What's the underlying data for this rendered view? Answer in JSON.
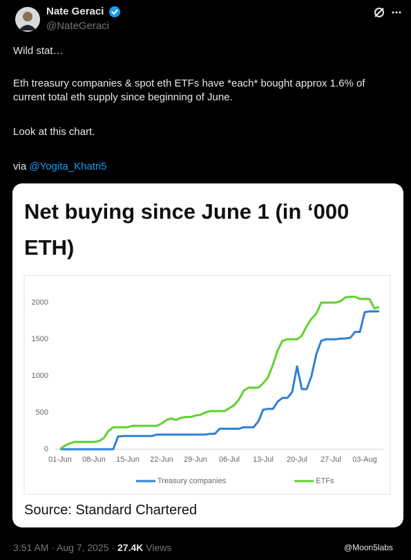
{
  "author": {
    "name": "Nate Geraci",
    "handle": "@NateGeraci"
  },
  "tweet": {
    "paragraphs": [
      "Wild stat…",
      "Eth treasury companies & spot eth ETFs have *each* bought approx 1.6% of current total eth supply since beginning of June.",
      "Look at this chart."
    ],
    "via": "via",
    "link": "@Yogita_Khatri5"
  },
  "chart_data": {
    "type": "line",
    "title": "Net buying since June 1 (in ‘000 ETH)",
    "source": "Source: Standard Chartered",
    "categories": [
      "01-Jun",
      null,
      null,
      null,
      null,
      null,
      null,
      "08-Jun",
      null,
      null,
      null,
      null,
      null,
      null,
      "15-Jun",
      null,
      null,
      null,
      null,
      null,
      null,
      "22-Jun",
      null,
      null,
      null,
      null,
      null,
      null,
      "29-Jun",
      null,
      null,
      null,
      null,
      null,
      null,
      "06-Jul",
      null,
      null,
      null,
      null,
      null,
      null,
      "13-Jul",
      null,
      null,
      null,
      null,
      null,
      null,
      "20-Jul",
      null,
      null,
      null,
      null,
      null,
      null,
      "27-Jul",
      null,
      null,
      null,
      null,
      null,
      null,
      "03-Aug",
      null,
      null,
      null
    ],
    "series": [
      {
        "name": "Treasury companies",
        "color": "#2e7fd6",
        "values": [
          0,
          0,
          0,
          0,
          0,
          0,
          0,
          0,
          0,
          0,
          0,
          0,
          175,
          180,
          180,
          180,
          180,
          180,
          180,
          180,
          200,
          200,
          200,
          200,
          200,
          200,
          200,
          200,
          200,
          200,
          200,
          210,
          210,
          280,
          280,
          280,
          280,
          280,
          300,
          300,
          300,
          380,
          540,
          550,
          550,
          650,
          700,
          700,
          780,
          1130,
          820,
          820,
          1000,
          1300,
          1480,
          1500,
          1500,
          1500,
          1510,
          1510,
          1520,
          1600,
          1600,
          1870,
          1880,
          1880,
          1880
        ]
      },
      {
        "name": "ETFs",
        "color": "#5fd12e",
        "values": [
          0,
          50,
          80,
          100,
          100,
          100,
          100,
          100,
          110,
          150,
          250,
          300,
          300,
          300,
          300,
          320,
          320,
          320,
          320,
          320,
          320,
          350,
          400,
          420,
          400,
          430,
          440,
          440,
          460,
          470,
          500,
          520,
          520,
          520,
          520,
          560,
          600,
          680,
          800,
          840,
          840,
          840,
          900,
          980,
          1150,
          1350,
          1480,
          1500,
          1500,
          1500,
          1550,
          1680,
          1780,
          1850,
          2000,
          2000,
          2000,
          2000,
          2020,
          2070,
          2080,
          2080,
          2050,
          2050,
          2050,
          1920,
          1940
        ]
      }
    ],
    "ylim": [
      0,
      2200
    ],
    "yticks": [
      0,
      500,
      1000,
      1500,
      2000
    ],
    "grid": false,
    "legend": "bottom"
  },
  "footer": {
    "time": "3:51 AM · Aug 7, 2025 ·",
    "views": "27.4K",
    "views_label": "Views",
    "watermark": "@Moon5labs"
  }
}
